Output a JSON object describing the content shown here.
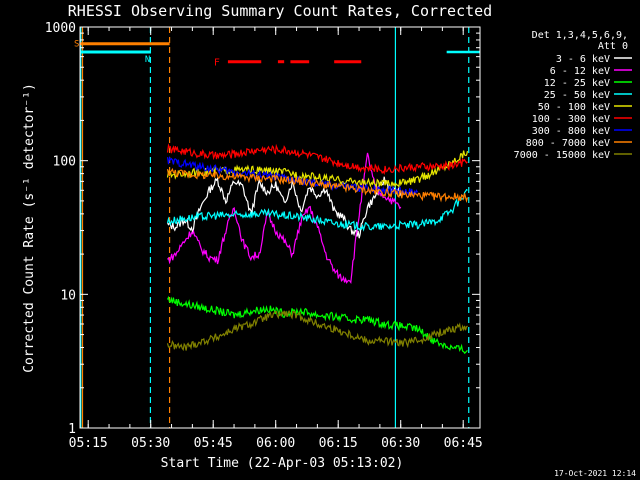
{
  "chart_data": {
    "type": "line",
    "title": "RHESSI Observing Summary Count Rates, Corrected",
    "xlabel": "Start Time (22-Apr-03 05:13:02)",
    "ylabel": "Corrected Count Rate (s⁻¹ detector⁻¹)",
    "yscale": "log",
    "ylim": [
      1,
      1000
    ],
    "xlim_minutes": [
      0,
      96
    ],
    "xticks": [
      {
        "label": "05:15",
        "minutes": 1.97
      },
      {
        "label": "05:30",
        "minutes": 16.97
      },
      {
        "label": "05:45",
        "minutes": 31.97
      },
      {
        "label": "06:00",
        "minutes": 46.97
      },
      {
        "label": "06:15",
        "minutes": 61.97
      },
      {
        "label": "06:30",
        "minutes": 76.97
      },
      {
        "label": "06:45",
        "minutes": 91.97
      }
    ],
    "yticks": [
      {
        "label": "1",
        "value": 1
      },
      {
        "label": "10",
        "value": 10
      },
      {
        "label": "100",
        "value": 100
      },
      {
        "label": "1000",
        "value": 1000
      }
    ],
    "legend_header": [
      "Det 1,3,4,5,6,9,",
      "Att 0"
    ],
    "series": [
      {
        "name": "3 - 6 keV",
        "color": "#ffffff",
        "x": [
          21,
          23,
          25,
          27,
          29,
          31,
          33,
          35,
          37,
          39,
          41,
          43,
          45,
          47,
          49,
          51,
          53,
          55,
          57,
          59,
          61,
          63,
          65,
          67,
          69,
          71,
          73,
          75,
          77
        ],
        "y": [
          33,
          32,
          36,
          31,
          45,
          60,
          72,
          50,
          70,
          64,
          40,
          68,
          58,
          66,
          48,
          70,
          42,
          64,
          55,
          62,
          42,
          38,
          30,
          28,
          45,
          55,
          72,
          60,
          58
        ]
      },
      {
        "name": "6 - 12 keV",
        "color": "#ff00ff",
        "x": [
          21,
          23,
          25,
          27,
          29,
          31,
          33,
          35,
          37,
          39,
          41,
          43,
          45,
          47,
          49,
          51,
          53,
          55,
          57,
          59,
          61,
          63,
          65,
          67,
          69,
          71,
          73,
          75,
          77
        ],
        "y": [
          18,
          20,
          25,
          30,
          22,
          19,
          18,
          30,
          45,
          25,
          19,
          20,
          40,
          30,
          25,
          20,
          35,
          45,
          32,
          20,
          15,
          13,
          13,
          40,
          110,
          60,
          55,
          50,
          45
        ]
      },
      {
        "name": "12 - 25 keV",
        "color": "#00ff00",
        "x": [
          21,
          25,
          29,
          33,
          37,
          41,
          45,
          49,
          53,
          57,
          61,
          65,
          69,
          73,
          77,
          81,
          85,
          89,
          93
        ],
        "y": [
          9.2,
          8.5,
          8.0,
          7.5,
          7.0,
          7.5,
          7.8,
          7.2,
          7.5,
          7.0,
          6.8,
          6.5,
          6.5,
          6.0,
          5.8,
          5.5,
          4.5,
          4.0,
          3.8
        ]
      },
      {
        "name": "25 - 50 keV",
        "color": "#00ffff",
        "x": [
          21,
          25,
          29,
          33,
          37,
          41,
          45,
          49,
          53,
          57,
          61,
          65,
          69,
          73,
          77,
          81,
          85,
          89,
          93
        ],
        "y": [
          35,
          37,
          38,
          39,
          39,
          40,
          40,
          39,
          38,
          36,
          34,
          33,
          32,
          32,
          33,
          33,
          35,
          42,
          60
        ]
      },
      {
        "name": "50 - 100 keV",
        "color": "#e6e600",
        "x": [
          21,
          25,
          29,
          33,
          37,
          41,
          45,
          49,
          53,
          57,
          61,
          65,
          69,
          73,
          77,
          81,
          85,
          89,
          93
        ],
        "y": [
          78,
          80,
          82,
          84,
          85,
          85,
          84,
          82,
          78,
          75,
          72,
          70,
          68,
          67,
          68,
          72,
          82,
          96,
          118
        ]
      },
      {
        "name": "100 - 300 keV",
        "color": "#ff0000",
        "x": [
          21,
          25,
          29,
          33,
          37,
          41,
          45,
          49,
          53,
          57,
          61,
          65,
          69,
          73,
          77,
          81,
          85,
          89,
          93
        ],
        "y": [
          122,
          118,
          112,
          108,
          112,
          118,
          122,
          120,
          114,
          106,
          98,
          92,
          88,
          86,
          88,
          90,
          90,
          92,
          98
        ]
      },
      {
        "name": "300 - 800 keV",
        "color": "#0000ff",
        "x": [
          21,
          25,
          29,
          33,
          37,
          41,
          45,
          49,
          53,
          57,
          61,
          65,
          69,
          73,
          77,
          81
        ],
        "y": [
          100,
          95,
          90,
          86,
          82,
          80,
          77,
          74,
          70,
          67,
          65,
          63,
          62,
          61,
          60,
          58
        ]
      },
      {
        "name": "800 - 7000 keV",
        "color": "#ff8000",
        "x": [
          21,
          25,
          29,
          33,
          37,
          41,
          45,
          49,
          53,
          57,
          61,
          65,
          69,
          73,
          77,
          81,
          85,
          89,
          93
        ],
        "y": [
          83,
          80,
          78,
          77,
          76,
          75,
          74,
          72,
          70,
          67,
          64,
          62,
          60,
          58,
          56,
          55,
          54,
          54,
          53
        ]
      },
      {
        "name": "7000 - 15000 keV",
        "color": "#808000",
        "x": [
          21,
          25,
          29,
          33,
          37,
          41,
          45,
          49,
          53,
          57,
          61,
          65,
          69,
          73,
          77,
          81,
          85,
          89,
          93
        ],
        "y": [
          4.2,
          4.0,
          4.4,
          4.8,
          5.5,
          6.0,
          6.8,
          7.2,
          6.8,
          6.0,
          5.5,
          5.0,
          4.5,
          4.5,
          4.3,
          4.5,
          5.0,
          5.5,
          5.8
        ]
      }
    ],
    "flag_markers": [
      {
        "label": "S",
        "color": "#ff8000",
        "value": 750,
        "x_start": 0,
        "x_end": 21.5
      },
      {
        "label": "N",
        "color": "#00ffff",
        "value": 650,
        "x_start": 0,
        "x_end": 17
      }
    ],
    "eclipse_lines": [
      {
        "color": "#00ffff",
        "value": 650,
        "x_start": 0,
        "x_end": 17
      },
      {
        "color": "#00ffff",
        "value": 650,
        "x_start": 88,
        "x_end": 96
      }
    ],
    "flare_marker": {
      "label": "F",
      "color": "#ff0000",
      "value": 550,
      "segments": [
        [
          35.5,
          43.5
        ],
        [
          47.5,
          49
        ],
        [
          50.5,
          55
        ],
        [
          61,
          67.5
        ]
      ]
    },
    "vertical_lines": [
      {
        "color": "#00ffff",
        "x": 0.2,
        "style": "solid"
      },
      {
        "color": "#ff8000",
        "x": 0.6,
        "style": "solid"
      },
      {
        "color": "#00ffff",
        "x": 16.9,
        "style": "dashed"
      },
      {
        "color": "#ff8000",
        "x": 21.5,
        "style": "dashed"
      },
      {
        "color": "#00ffff",
        "x": 75.7,
        "style": "solid"
      },
      {
        "color": "#00ffff",
        "x": 93.3,
        "style": "dashed"
      }
    ]
  },
  "footer": {
    "timestamp": "17-Oct-2021 12:14"
  }
}
